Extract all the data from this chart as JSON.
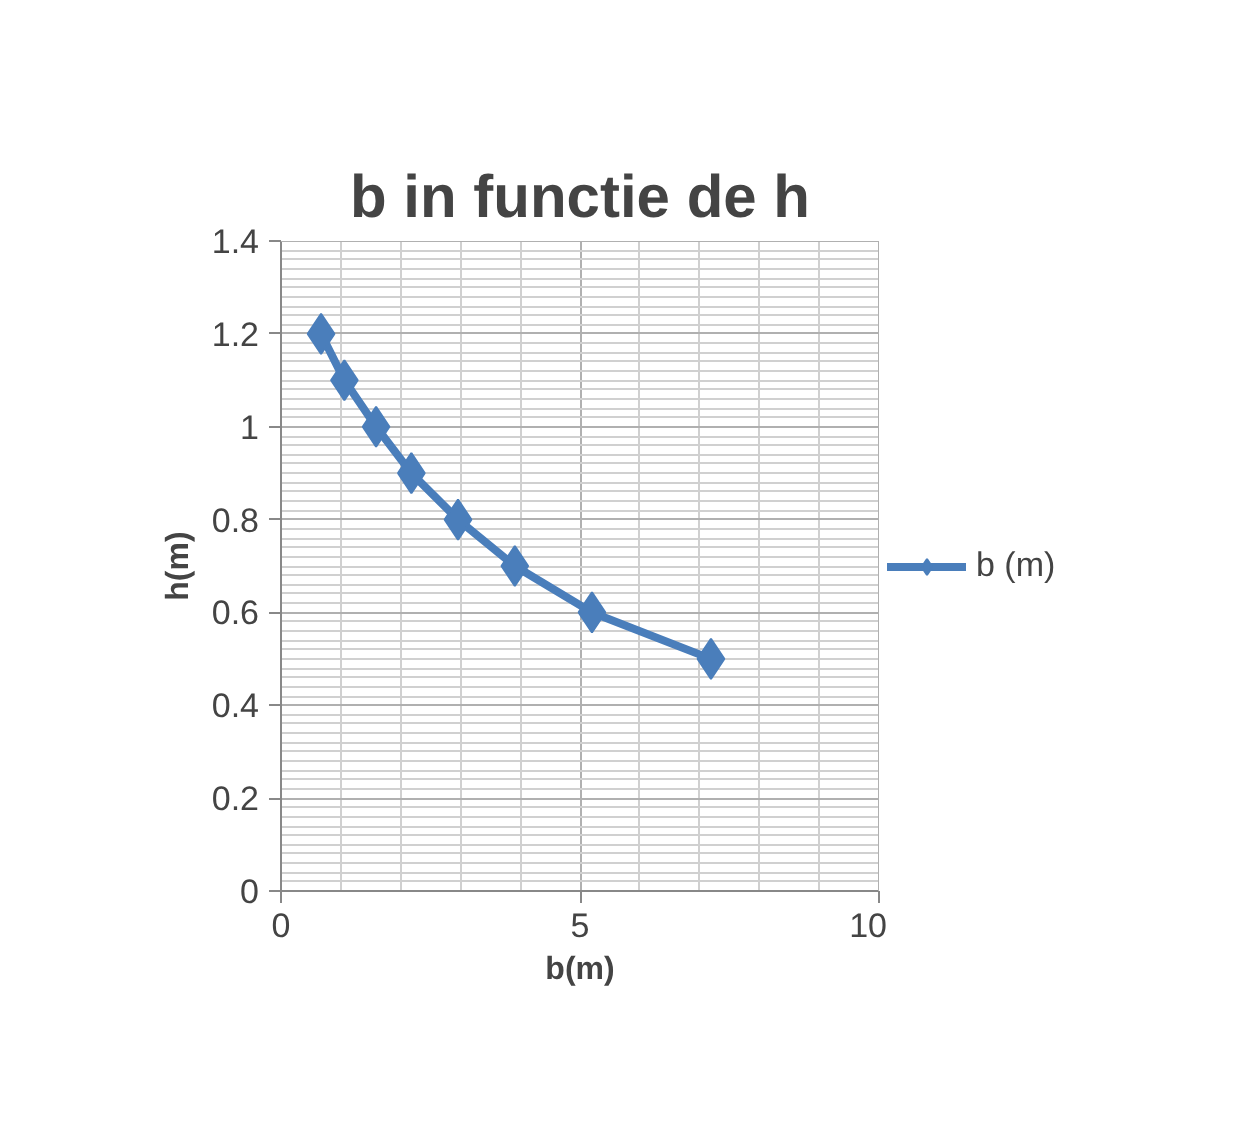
{
  "chart_data": {
    "type": "line",
    "title": "b in functie de h",
    "xlabel": "b(m)",
    "ylabel": "h(m)",
    "x": [
      0.67,
      1.06,
      1.59,
      2.18,
      2.96,
      3.91,
      5.2,
      7.19
    ],
    "series": [
      {
        "name": "b (m)",
        "color": "#4a7ebb",
        "values": [
          1.2,
          1.1,
          1.0,
          0.9,
          0.8,
          0.7,
          0.6,
          0.5
        ]
      }
    ],
    "xlim": [
      0,
      10
    ],
    "xticks": [
      0,
      5,
      10
    ],
    "ylim": [
      0,
      1.4
    ],
    "yticks": [
      0,
      0.2,
      0.4,
      0.6,
      0.8,
      1,
      1.2,
      1.4
    ],
    "grid": true,
    "legend": "right",
    "marker": "diamond",
    "line_style": "solid"
  }
}
